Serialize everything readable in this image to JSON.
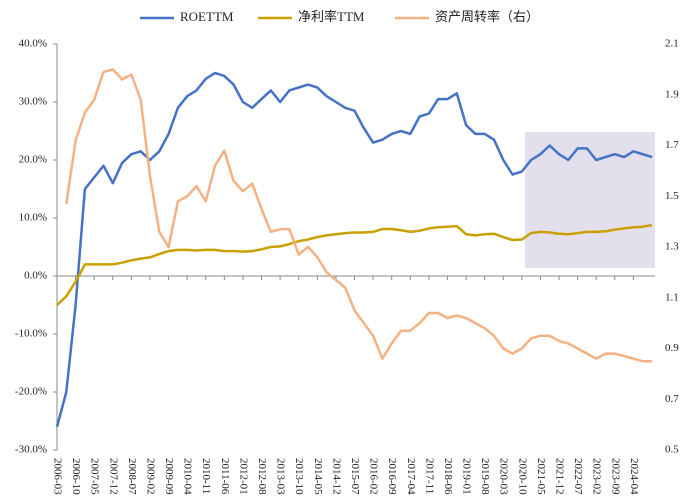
{
  "chart_data": {
    "type": "line",
    "categories": [
      "2006-03",
      null,
      "2006-10",
      null,
      "2007-05",
      null,
      "2007-12",
      null,
      "2008-07",
      null,
      "2009-02",
      null,
      "2009-09",
      null,
      "2010-04",
      null,
      "2010-11",
      null,
      "2011-06",
      null,
      "2012-01",
      null,
      "2012-08",
      null,
      "2013-03",
      null,
      "2013-10",
      null,
      "2014-05",
      null,
      "2014-12",
      null,
      "2015-07",
      null,
      "2016-02",
      null,
      "2016-09",
      null,
      "2017-04",
      null,
      "2017-11",
      null,
      "2018-06",
      null,
      "2019-01",
      null,
      "2019-08",
      null,
      "2020-03",
      null,
      "2020-10",
      null,
      "2021-05",
      null,
      "2021-12",
      null,
      "2022-07",
      null,
      "2023-02",
      null,
      "2023-09",
      null,
      "2024-04",
      null,
      null
    ],
    "series": [
      {
        "name": "ROETTM",
        "color": "#4472c4",
        "values": [
          -26,
          -20,
          -5,
          15,
          17,
          19,
          16,
          19.5,
          21,
          21.5,
          20,
          21.5,
          24.5,
          29,
          31,
          32,
          34,
          35,
          34.5,
          33,
          30,
          29,
          30.5,
          32,
          30,
          32,
          32.5,
          33,
          32.5,
          31,
          30,
          29,
          28.5,
          25.5,
          23,
          23.5,
          24.5,
          25,
          24.5,
          27.5,
          28,
          30.5,
          30.5,
          31.5,
          26,
          24.5,
          24.5,
          23.5,
          20,
          17.5,
          18,
          20,
          21,
          22.5,
          21,
          20,
          22,
          22,
          20,
          20.5,
          21,
          20.5,
          21.5,
          21,
          20.5
        ]
      },
      {
        "name": "净利率TTM",
        "color": "#c8a000",
        "values": [
          -5,
          -3.5,
          -1,
          2,
          2,
          2,
          2,
          2.3,
          2.7,
          3,
          3.2,
          3.8,
          4.3,
          4.5,
          4.5,
          4.4,
          4.5,
          4.5,
          4.3,
          4.3,
          4.2,
          4.3,
          4.6,
          5,
          5.1,
          5.5,
          6,
          6.3,
          6.7,
          7,
          7.2,
          7.4,
          7.5,
          7.5,
          7.6,
          8.1,
          8.1,
          7.9,
          7.6,
          7.8,
          8.2,
          8.4,
          8.5,
          8.6,
          7.2,
          7,
          7.2,
          7.3,
          6.7,
          6.2,
          6.3,
          7.4,
          7.6,
          7.5,
          7.3,
          7.2,
          7.4,
          7.6,
          7.6,
          7.7,
          8,
          8.2,
          8.4,
          8.5,
          8.8
        ]
      },
      {
        "name": "资产周转率（右）",
        "color": "#f4b183",
        "axis": "y2",
        "values": [
          null,
          1.47,
          1.72,
          1.83,
          1.88,
          1.99,
          2.0,
          1.96,
          1.98,
          1.88,
          1.58,
          1.36,
          1.3,
          1.48,
          1.5,
          1.54,
          1.48,
          1.62,
          1.68,
          1.56,
          1.52,
          1.55,
          1.45,
          1.36,
          1.37,
          1.37,
          1.27,
          1.3,
          1.26,
          1.2,
          1.17,
          1.14,
          1.05,
          1.0,
          0.95,
          0.86,
          0.92,
          0.97,
          0.97,
          1.0,
          1.04,
          1.04,
          1.02,
          1.03,
          1.02,
          1.0,
          0.98,
          0.95,
          0.9,
          0.88,
          0.9,
          0.94,
          0.95,
          0.95,
          0.93,
          0.92,
          0.9,
          0.88,
          0.86,
          0.88,
          0.88,
          0.87,
          0.86,
          0.85,
          0.85
        ]
      }
    ],
    "ylim": [
      -30,
      40
    ],
    "yticks": [
      {
        "value": 40,
        "label": "40.0%"
      },
      {
        "value": 30,
        "label": "30.0%"
      },
      {
        "value": 20,
        "label": "20.0%"
      },
      {
        "value": 10,
        "label": "10.0%"
      },
      {
        "value": 0,
        "label": "0.0%"
      },
      {
        "value": -10,
        "label": "-10.0%"
      },
      {
        "value": -20,
        "label": "-20.0%"
      },
      {
        "value": -30,
        "label": "-30.0%"
      }
    ],
    "y2lim": [
      0.5,
      2.1
    ],
    "y2ticks": [
      2.1,
      1.9,
      1.7,
      1.5,
      1.3,
      1.1,
      0.9,
      0.7,
      0.5
    ],
    "legend": "top"
  }
}
